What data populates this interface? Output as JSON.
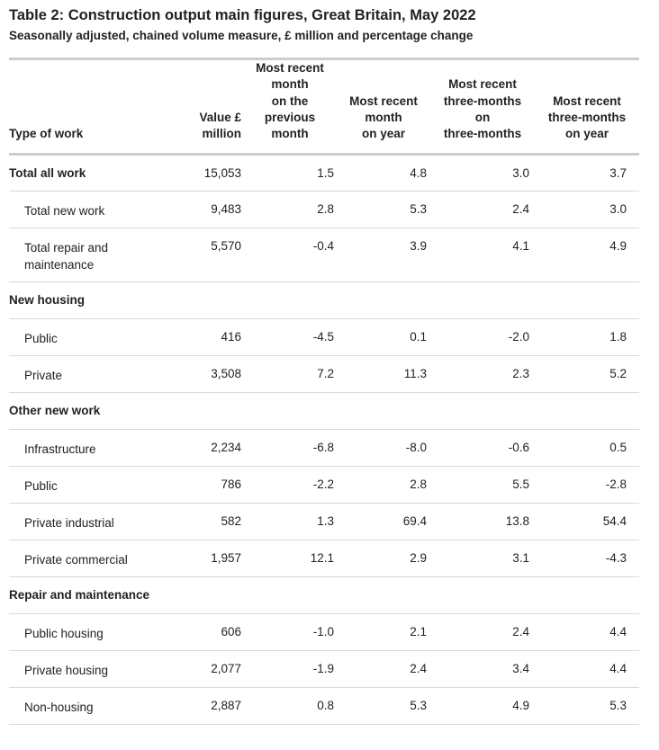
{
  "title": "Table 2: Construction output main figures, Great Britain, May 2022",
  "subtitle": "Seasonally adjusted, chained volume measure, £ million and percentage change",
  "headers": {
    "type_of_work": "Type of work",
    "value_line1": "Value £",
    "value_line2": "million",
    "mom": [
      "Most recent",
      "month",
      "on the",
      "previous",
      "month"
    ],
    "moy": [
      "Most recent",
      "month",
      "on year"
    ],
    "tmtm": [
      "Most recent",
      "three-months",
      "on",
      "three-months"
    ],
    "tmy": [
      "Most recent",
      "three-months",
      "on year"
    ]
  },
  "rows": [
    {
      "label": "Total all work",
      "bold": true,
      "values": [
        "15,053",
        "1.5",
        "4.8",
        "3.0",
        "3.7"
      ]
    },
    {
      "label": "Total new work",
      "values": [
        "9,483",
        "2.8",
        "5.3",
        "2.4",
        "3.0"
      ]
    },
    {
      "label": "Total repair and maintenance",
      "values": [
        "5,570",
        "-0.4",
        "3.9",
        "4.1",
        "4.9"
      ]
    },
    {
      "section": "New housing"
    },
    {
      "label": "Public",
      "values": [
        "416",
        "-4.5",
        "0.1",
        "-2.0",
        "1.8"
      ]
    },
    {
      "label": "Private",
      "values": [
        "3,508",
        "7.2",
        "11.3",
        "2.3",
        "5.2"
      ]
    },
    {
      "section": "Other new work"
    },
    {
      "label": "Infrastructure",
      "values": [
        "2,234",
        "-6.8",
        "-8.0",
        "-0.6",
        "0.5"
      ]
    },
    {
      "label": "Public",
      "values": [
        "786",
        "-2.2",
        "2.8",
        "5.5",
        "-2.8"
      ]
    },
    {
      "label": "Private industrial",
      "values": [
        "582",
        "1.3",
        "69.4",
        "13.8",
        "54.4"
      ]
    },
    {
      "label": "Private commercial",
      "values": [
        "1,957",
        "12.1",
        "2.9",
        "3.1",
        "-4.3"
      ]
    },
    {
      "section": "Repair and maintenance"
    },
    {
      "label": "Public housing",
      "values": [
        "606",
        "-1.0",
        "2.1",
        "2.4",
        "4.4"
      ]
    },
    {
      "label": "Private housing",
      "values": [
        "2,077",
        "-1.9",
        "2.4",
        "3.4",
        "4.4"
      ]
    },
    {
      "label": "Non-housing",
      "values": [
        "2,887",
        "0.8",
        "5.3",
        "4.9",
        "5.3"
      ]
    }
  ]
}
